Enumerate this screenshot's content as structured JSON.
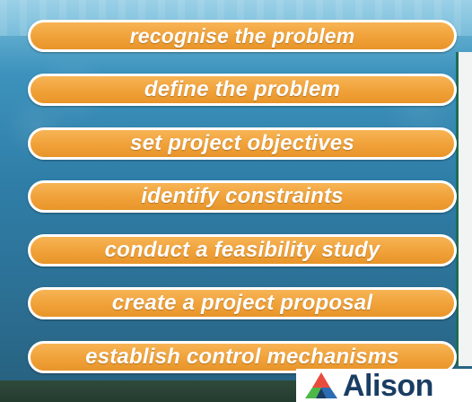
{
  "steps": [
    "recognise the problem",
    "define the problem",
    "set project objectives",
    "identify constraints",
    "conduct a feasibility study",
    "create a project proposal",
    "establish control mechanisms"
  ],
  "logo": {
    "brand_text": "Alison",
    "icon": "alison-triangle-logo-icon"
  },
  "colors": {
    "pill_fill": "#f0a138",
    "pill_border": "#ffffff",
    "label_text": "#ffffff",
    "logo_text": "#1a3d63",
    "background": "#2f7ea8"
  }
}
